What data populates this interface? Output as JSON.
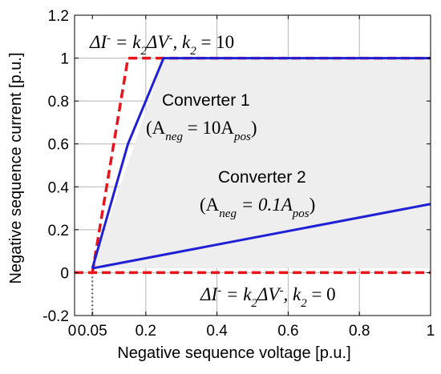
{
  "chart_data": {
    "type": "line",
    "title": "",
    "xlabel": "Negative sequence voltage [p.u.]",
    "ylabel": "Negative sequence current [p.u.]",
    "xlim": [
      0,
      1
    ],
    "ylim": [
      -0.2,
      1.2
    ],
    "x_ticks": [
      0,
      0.05,
      0.2,
      0.4,
      0.6,
      0.8,
      1
    ],
    "x_tick_labels": [
      "0",
      "0.05",
      "0.2",
      "0.4",
      "0.6",
      "0.8",
      "1"
    ],
    "y_ticks": [
      -0.2,
      0,
      0.2,
      0.4,
      0.6,
      0.8,
      1,
      1.2
    ],
    "y_tick_labels": [
      "-0.2",
      "0",
      "0.2",
      "0.4",
      "0.6",
      "0.8",
      "1",
      "1.2"
    ],
    "grid": true,
    "series": [
      {
        "style": "dashed",
        "color": "#e8141c",
        "x": [
          0.05,
          0.15,
          1.0
        ],
        "y": [
          0,
          1,
          1
        ]
      },
      {
        "style": "dashed",
        "color": "#e8141c",
        "x": [
          0,
          1.0
        ],
        "y": [
          0,
          0
        ]
      },
      {
        "style": "solid",
        "color": "#1f1fd6",
        "x": [
          0.05,
          0.15,
          0.25,
          1.0
        ],
        "y": [
          0.02,
          0.6,
          1,
          1
        ]
      },
      {
        "style": "solid",
        "color": "#1f1fd6",
        "x": [
          0.05,
          1.0
        ],
        "y": [
          0.02,
          0.32
        ]
      }
    ],
    "shaded_region": {
      "color": "#eeeeee",
      "x": [
        0.05,
        0.25,
        1.0,
        1.0
      ],
      "y": [
        0.02,
        1,
        1,
        0.02
      ]
    },
    "reference_line": {
      "x": 0.05,
      "style": "dotted",
      "color": "#555555"
    },
    "annotations": [
      {
        "id": "k2_10",
        "parts": [
          "ΔI",
          "-",
          " = k",
          "2",
          "ΔV",
          "-",
          ", k",
          "2",
          " = 10"
        ]
      },
      {
        "id": "conv1_name",
        "text": "Converter 1"
      },
      {
        "id": "conv1_rel",
        "parts": [
          "(A",
          "neg",
          " = 10A",
          "pos",
          ")"
        ]
      },
      {
        "id": "conv2_name",
        "text": "Converter 2"
      },
      {
        "id": "conv2_rel",
        "parts": [
          "(A",
          "neg",
          " = 0.1A",
          "pos",
          ")"
        ]
      },
      {
        "id": "k2_0",
        "parts": [
          "ΔI",
          "-",
          " = k",
          "2",
          "ΔV",
          "-",
          ", k",
          "2",
          " = 0"
        ]
      }
    ]
  }
}
